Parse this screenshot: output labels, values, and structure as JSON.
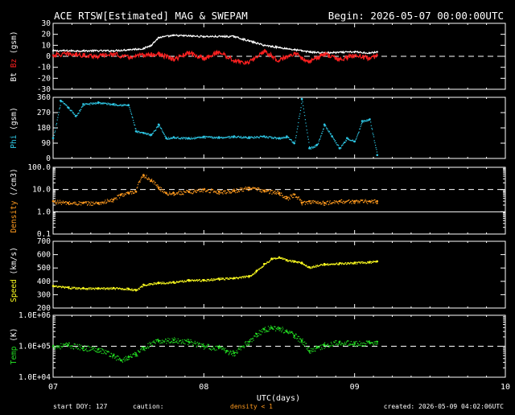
{
  "header": {
    "title": "ACE RTSW[Estimated] MAG & SWEPAM",
    "begin": "Begin: 2026-05-07 00:00:00UTC"
  },
  "footer": {
    "start_doy": "start DOY: 127",
    "caution": "caution:",
    "density_note": "density < 1",
    "created": "created: 2026-05-09 04:02:06UTC"
  },
  "colors": {
    "background": "#000000",
    "axes": "#ffffff",
    "bt": "#ffffff",
    "bz": "#ff2020",
    "phi": "#2ec8e6",
    "density": "#ff9a1e",
    "speed": "#ffff20",
    "temp": "#22dd22",
    "caution": "#ff9a1e"
  },
  "chart_data": [
    {
      "id": "mag",
      "type": "line",
      "ylabel_parts": [
        {
          "text": "Bt",
          "color": "#ffffff"
        },
        {
          "text": " Bz",
          "color": "#ff2020"
        },
        {
          "text": " (gsm)",
          "color": "#ffffff"
        }
      ],
      "ylim": [
        -30,
        30
      ],
      "yticks": [
        30,
        20,
        10,
        0,
        -10,
        -20,
        -30
      ],
      "ytick_labels": [
        "30",
        "20",
        "10",
        "0",
        "-10",
        "-20",
        "-30"
      ],
      "reference_lines": [
        0
      ],
      "xlim": [
        7,
        10
      ],
      "series": [
        {
          "name": "Bt",
          "color": "#ffffff",
          "x": [
            7.0,
            7.2,
            7.4,
            7.5,
            7.6,
            7.65,
            7.7,
            7.8,
            8.0,
            8.2,
            8.3,
            8.4,
            8.45,
            8.5,
            8.55,
            8.6,
            8.65,
            8.7,
            8.8,
            9.0,
            9.1,
            9.15
          ],
          "y": [
            5,
            5,
            5,
            6,
            7,
            10,
            17,
            19,
            18,
            18,
            14,
            10,
            9,
            8,
            7,
            6,
            5,
            4,
            3,
            4,
            3,
            4
          ]
        },
        {
          "name": "Bz",
          "color": "#ff2020",
          "x": [
            7.0,
            7.1,
            7.2,
            7.3,
            7.4,
            7.5,
            7.6,
            7.7,
            7.8,
            7.9,
            8.0,
            8.1,
            8.2,
            8.3,
            8.4,
            8.5,
            8.6,
            8.7,
            8.8,
            8.9,
            9.0,
            9.1,
            9.15
          ],
          "y": [
            1,
            2,
            1,
            0,
            2,
            -1,
            1,
            2,
            -3,
            3,
            -2,
            4,
            -4,
            -6,
            5,
            -4,
            3,
            -5,
            2,
            -3,
            1,
            -2,
            1
          ]
        }
      ]
    },
    {
      "id": "phi",
      "type": "scatter",
      "ylabel_parts": [
        {
          "text": "Phi",
          "color": "#2ec8e6"
        },
        {
          "text": " (gsm)",
          "color": "#ffffff"
        }
      ],
      "ylim": [
        0,
        360
      ],
      "yticks": [
        360,
        270,
        180,
        90,
        0
      ],
      "ytick_labels": [
        "360",
        "270",
        "180",
        "90",
        "0"
      ],
      "reference_lines": [],
      "xlim": [
        7,
        10
      ],
      "series": [
        {
          "name": "Phi",
          "color": "#2ec8e6",
          "x": [
            7.0,
            7.05,
            7.1,
            7.15,
            7.2,
            7.3,
            7.4,
            7.5,
            7.55,
            7.6,
            7.65,
            7.7,
            7.75,
            7.8,
            7.9,
            8.0,
            8.1,
            8.2,
            8.3,
            8.4,
            8.5,
            8.55,
            8.6,
            8.65,
            8.7,
            8.75,
            8.8,
            8.85,
            8.9,
            8.95,
            9.0,
            9.05,
            9.1,
            9.15
          ],
          "y": [
            120,
            340,
            300,
            250,
            320,
            330,
            320,
            315,
            160,
            150,
            140,
            200,
            120,
            125,
            120,
            128,
            125,
            130,
            125,
            130,
            120,
            130,
            90,
            350,
            60,
            80,
            200,
            130,
            60,
            120,
            100,
            220,
            230,
            20
          ]
        }
      ]
    },
    {
      "id": "density",
      "type": "scatter",
      "ylabel_parts": [
        {
          "text": "Density",
          "color": "#ff9a1e"
        },
        {
          "text": " (/cm3)",
          "color": "#ffffff"
        }
      ],
      "yscale": "log",
      "ylim": [
        0.1,
        100
      ],
      "yticks": [
        100,
        10,
        1,
        0.1
      ],
      "ytick_labels": [
        "100.0",
        "10.0",
        "1.0",
        "0.1"
      ],
      "reference_lines": [
        10
      ],
      "solid_lines": [
        1
      ],
      "xlim": [
        7,
        10
      ],
      "series": [
        {
          "name": "Density",
          "color": "#ff9a1e",
          "x": [
            7.0,
            7.1,
            7.2,
            7.3,
            7.4,
            7.45,
            7.5,
            7.55,
            7.6,
            7.65,
            7.7,
            7.75,
            7.8,
            7.9,
            8.0,
            8.1,
            8.2,
            8.3,
            8.4,
            8.5,
            8.55,
            8.6,
            8.65,
            8.7,
            8.8,
            8.9,
            9.0,
            9.1,
            9.15
          ],
          "y": [
            3,
            2.5,
            2.5,
            2.5,
            3.5,
            6,
            7,
            8,
            45,
            25,
            12,
            7,
            7,
            8,
            10,
            8,
            9,
            12,
            9,
            7,
            4,
            6,
            2.5,
            3,
            2.5,
            3,
            3,
            3,
            3
          ]
        }
      ]
    },
    {
      "id": "speed",
      "type": "scatter",
      "ylabel_parts": [
        {
          "text": "Speed",
          "color": "#ffff20"
        },
        {
          "text": " (km/s)",
          "color": "#ffffff"
        }
      ],
      "ylim": [
        200,
        700
      ],
      "yticks": [
        700,
        600,
        500,
        400,
        300,
        200
      ],
      "ytick_labels": [
        "700",
        "600",
        "500",
        "400",
        "300",
        "200"
      ],
      "reference_lines": [],
      "xlim": [
        7,
        10
      ],
      "series": [
        {
          "name": "Speed",
          "color": "#ffff20",
          "x": [
            7.0,
            7.1,
            7.2,
            7.3,
            7.4,
            7.5,
            7.55,
            7.6,
            7.7,
            7.8,
            7.9,
            8.0,
            8.1,
            8.2,
            8.3,
            8.35,
            8.4,
            8.45,
            8.5,
            8.55,
            8.6,
            8.65,
            8.7,
            8.8,
            8.9,
            9.0,
            9.1,
            9.15
          ],
          "y": [
            365,
            355,
            350,
            348,
            350,
            345,
            335,
            375,
            390,
            395,
            410,
            410,
            420,
            425,
            440,
            480,
            530,
            570,
            580,
            560,
            550,
            540,
            505,
            530,
            535,
            540,
            545,
            550
          ]
        }
      ]
    },
    {
      "id": "temp",
      "type": "scatter",
      "ylabel_parts": [
        {
          "text": "Temp",
          "color": "#22dd22"
        },
        {
          "text": " (K)",
          "color": "#ffffff"
        }
      ],
      "yscale": "log",
      "ylim": [
        10000,
        1000000
      ],
      "yticks": [
        1000000,
        100000,
        10000
      ],
      "ytick_labels": [
        "1.0E+06",
        "1.0E+05",
        "1.0E+04"
      ],
      "reference_lines": [
        100000
      ],
      "xlim": [
        7,
        10
      ],
      "series": [
        {
          "name": "Temp",
          "color": "#22dd22",
          "x": [
            7.0,
            7.1,
            7.2,
            7.3,
            7.4,
            7.45,
            7.5,
            7.55,
            7.6,
            7.7,
            7.8,
            7.9,
            8.0,
            8.1,
            8.15,
            8.2,
            8.3,
            8.35,
            8.4,
            8.45,
            8.5,
            8.55,
            8.6,
            8.65,
            8.7,
            8.75,
            8.8,
            8.9,
            9.0,
            9.1,
            9.15
          ],
          "y": [
            100000,
            110000,
            90000,
            80000,
            50000,
            35000,
            45000,
            55000,
            90000,
            150000,
            160000,
            140000,
            100000,
            90000,
            70000,
            60000,
            140000,
            250000,
            350000,
            400000,
            380000,
            300000,
            220000,
            150000,
            70000,
            90000,
            110000,
            140000,
            120000,
            130000,
            140000
          ]
        }
      ]
    }
  ],
  "x_axis": {
    "ticks": [
      7,
      8,
      9,
      10
    ],
    "tick_labels": [
      "07",
      "08",
      "09",
      "10"
    ],
    "xlabel": "UTC(days)"
  }
}
